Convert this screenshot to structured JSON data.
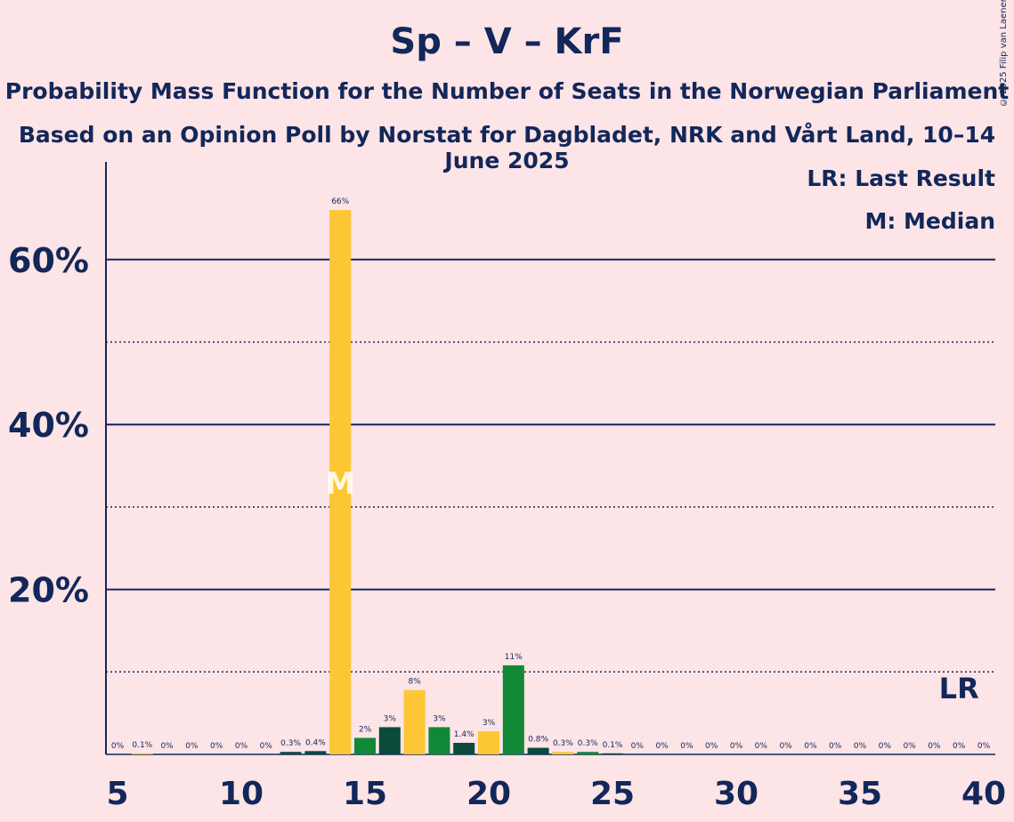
{
  "header": {
    "title": "Sp – V – KrF",
    "subtitle": "Probability Mass Function for the Number of Seats in the Norwegian Parliament",
    "subtitle2": "Based on an Opinion Poll by Norstat for Dagbladet, NRK and Vårt Land, 10–14 June 2025",
    "copyright": "© 2025 Filip van Laenen"
  },
  "legend": {
    "last_result": "LR: Last Result",
    "median": "M: Median"
  },
  "colors": {
    "background": "#fde4e6",
    "text": "#12275a",
    "yellow": "#fdc634",
    "dark_green": "#0a4b3c",
    "green": "#108836"
  },
  "chart_data": {
    "type": "bar",
    "seats": [
      5,
      6,
      7,
      8,
      9,
      10,
      11,
      12,
      13,
      14,
      15,
      16,
      17,
      18,
      19,
      20,
      21,
      22,
      23,
      24,
      25,
      26,
      27,
      28,
      29,
      30,
      31,
      32,
      33,
      34,
      35,
      36,
      37,
      38,
      39,
      40
    ],
    "values": [
      0,
      0.1,
      0,
      0,
      0,
      0,
      0,
      0.3,
      0.4,
      66,
      2,
      3.3,
      7.8,
      3.3,
      1.4,
      2.8,
      10.8,
      0.8,
      0.3,
      0.3,
      0.1,
      0,
      0,
      0,
      0,
      0,
      0,
      0,
      0,
      0,
      0,
      0,
      0,
      0,
      0,
      0
    ],
    "labels": [
      "0%",
      "0.1%",
      "0%",
      "0%",
      "0%",
      "0%",
      "0%",
      "0.3%",
      "0.4%",
      "66%",
      "2%",
      "3%",
      "8%",
      "3%",
      "1.4%",
      "3%",
      "11%",
      "0.8%",
      "0.3%",
      "0.3%",
      "0.1%",
      "0%",
      "0%",
      "0%",
      "0%",
      "0%",
      "0%",
      "0%",
      "0%",
      "0%",
      "0%",
      "0%",
      "0%",
      "0%",
      "0%",
      "0%"
    ],
    "bar_colors": [
      "yellow",
      "yellow",
      "yellow",
      "yellow",
      "yellow",
      "yellow",
      "yellow",
      "dark_green",
      "dark_green",
      "yellow",
      "green",
      "dark_green",
      "yellow",
      "green",
      "dark_green",
      "yellow",
      "green",
      "dark_green",
      "yellow",
      "green",
      "dark_green",
      "yellow",
      "green",
      "dark_green",
      "yellow",
      "green",
      "dark_green",
      "yellow",
      "green",
      "dark_green",
      "yellow",
      "green",
      "dark_green",
      "yellow",
      "green",
      "dark_green"
    ],
    "x_ticks": [
      "5",
      "10",
      "15",
      "20",
      "25",
      "30",
      "35",
      "40"
    ],
    "y_ticks": [
      "20%",
      "40%",
      "60%"
    ],
    "ylim": [
      0,
      72
    ],
    "median_seat": 14,
    "median_marker": "M",
    "last_result_seat": 39,
    "last_result_marker": "LR",
    "grid": true
  }
}
